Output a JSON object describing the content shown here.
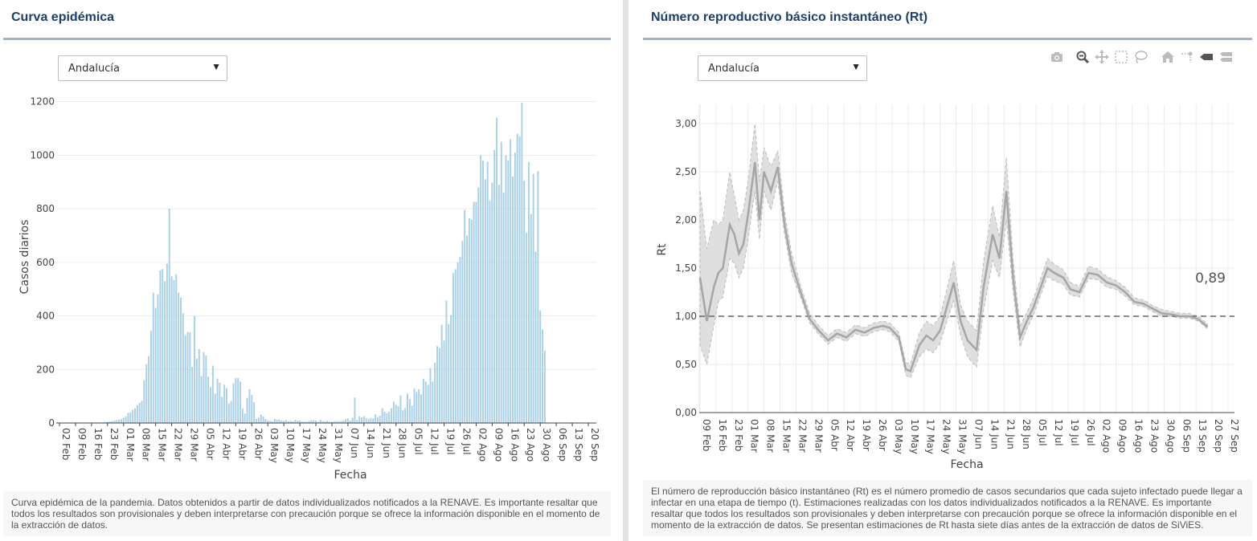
{
  "left_panel": {
    "title": "Curva epidémica",
    "region_select": {
      "value": "Andalucía"
    },
    "footnote": "Curva epidémica de la pandemia. Datos obtenidos a partir de datos individualizados notificados a la RENAVE. Es importante resaltar que todos los resultados son provisionales y deben interpretarse con precaución porque se ofrece la información disponible en el momento de la extracción de datos."
  },
  "right_panel": {
    "title": "Número reproductivo básico instantáneo (Rt)",
    "region_select": {
      "value": "Andalucía"
    },
    "footnote": "El número de reproducción básico instantáneo (Rt) es el número promedio de casos secundarios que cada sujeto infectado puede llegar a infectar en una etapa de tiempo (t). Estimaciones realizadas con los datos individualizados notificados a la RENAVE. Es importante resaltar que todos los resultados son provisionales y deben interpretarse con precaución porque se ofrece la información disponible en el momento de la extracción de datos. Se presentan estimaciones de Rt hasta siete días antes de la extracción de datos de SiViES.",
    "modebar": [
      "camera-icon",
      "zoom-icon",
      "pan-icon",
      "box-select-icon",
      "lasso-select-icon",
      "home-icon",
      "spike-lines-icon",
      "hover-closest-icon",
      "hover-compare-icon"
    ]
  },
  "colors": {
    "bars": "#a9d0e6",
    "rt_line": "#a6a6a6",
    "rt_band": "#d9d9d9",
    "title": "#1b3f6a",
    "rule": "#9db4cd"
  },
  "chart_data": [
    {
      "type": "bar",
      "xlabel": "Fecha",
      "ylabel": "Casos diarios",
      "ylim": [
        0,
        1220
      ],
      "yticks": [
        "0",
        "200",
        "400",
        "600",
        "800",
        "1000",
        "1200"
      ],
      "ytick_values": [
        0,
        200,
        400,
        600,
        800,
        1000,
        1200
      ],
      "xticks": [
        "02 Feb",
        "09 Feb",
        "16 Feb",
        "23 Feb",
        "01 Mar",
        "08 Mar",
        "15 Mar",
        "22 Mar",
        "29 Mar",
        "05 Abr",
        "12 Abr",
        "19 Abr",
        "26 Abr",
        "03 May",
        "10 May",
        "17 May",
        "24 May",
        "31 May",
        "07 Jun",
        "14 Jun",
        "21 Jun",
        "28 Jun",
        "05 Jul",
        "12 Jul",
        "19 Jul",
        "26 Jul",
        "02 Ago",
        "09 Ago",
        "16 Ago",
        "23 Ago",
        "30 Ago",
        "06 Sep",
        "13 Sep",
        "20 Sep"
      ],
      "start_date": "2020-02-02",
      "values": [
        0,
        0,
        0,
        1,
        1,
        0,
        0,
        0,
        1,
        1,
        0,
        0,
        0,
        1,
        1,
        2,
        2,
        2,
        2,
        3,
        4,
        5,
        6,
        7,
        9,
        11,
        12,
        15,
        19,
        24,
        38,
        40,
        49,
        54,
        67,
        75,
        83,
        160,
        220,
        250,
        344,
        487,
        430,
        480,
        570,
        575,
        530,
        595,
        800,
        548,
        534,
        556,
        486,
        468,
        410,
        326,
        340,
        338,
        210,
        400,
        240,
        276,
        175,
        264,
        252,
        173,
        134,
        214,
        110,
        166,
        150,
        97,
        143,
        130,
        73,
        82,
        148,
        168,
        168,
        155,
        54,
        35,
        94,
        126,
        105,
        78,
        15,
        20,
        32,
        24,
        15,
        10,
        8,
        6,
        16,
        12,
        13,
        9,
        8,
        11,
        7,
        8,
        6,
        12,
        9,
        9,
        6,
        5,
        5,
        7,
        10,
        10,
        9,
        5,
        12,
        7,
        6,
        9,
        5,
        5,
        5,
        7,
        7,
        7,
        9,
        14,
        17,
        9,
        20,
        95,
        12,
        25,
        21,
        25,
        19,
        15,
        19,
        17,
        32,
        22,
        27,
        55,
        42,
        37,
        42,
        55,
        80,
        68,
        63,
        103,
        48,
        56,
        110,
        90,
        65,
        128,
        116,
        126,
        107,
        165,
        155,
        143,
        205,
        155,
        225,
        287,
        280,
        367,
        308,
        457,
        370,
        403,
        560,
        574,
        600,
        620,
        680,
        796,
        700,
        765,
        760,
        826,
        826,
        880,
        1000,
        980,
        910,
        976,
        830,
        898,
        1020,
        1140,
        890,
        1050,
        860,
        1000,
        980,
        1060,
        920,
        1010,
        1080,
        1070,
        1196,
        905,
        710,
        975,
        780,
        930,
        640,
        940,
        420,
        350,
        270
      ]
    },
    {
      "type": "line",
      "xlabel": "Fecha",
      "ylabel": "Rt",
      "ylim": [
        0,
        3.2
      ],
      "yticks": [
        "0,00",
        "0,50",
        "1,00",
        "1,50",
        "2,00",
        "2,50",
        "3,00"
      ],
      "ytick_values": [
        0,
        0.5,
        1,
        1.5,
        2,
        2.5,
        3
      ],
      "xticks": [
        "09 Feb",
        "16 Feb",
        "23 Feb",
        "01 Mar",
        "08 Mar",
        "15 Mar",
        "22 Mar",
        "29 Mar",
        "05 Abr",
        "12 Abr",
        "19 Abr",
        "26 Abr",
        "03 May",
        "10 May",
        "17 May",
        "24 May",
        "31 May",
        "07 Jun",
        "14 Jun",
        "21 Jun",
        "28 Jun",
        "05 Jul",
        "12 Jul",
        "19 Jul",
        "26 Jul",
        "02 Ago",
        "09 Ago",
        "16 Ago",
        "23 Ago",
        "30 Ago",
        "06 Sep",
        "13 Sep",
        "20 Sep",
        "27 Sep"
      ],
      "reference_line": 1.0,
      "last_value_label": "0,89",
      "series": [
        {
          "x": [
            "2020-02-09",
            "2020-02-12",
            "2020-02-15",
            "2020-02-17",
            "2020-02-19",
            "2020-02-22",
            "2020-02-24",
            "2020-02-26",
            "2020-02-28",
            "2020-03-01",
            "2020-03-04",
            "2020-03-06",
            "2020-03-08",
            "2020-03-11",
            "2020-03-14",
            "2020-03-17",
            "2020-03-20",
            "2020-03-24",
            "2020-03-28",
            "2020-04-01",
            "2020-04-05",
            "2020-04-09",
            "2020-04-13",
            "2020-04-17",
            "2020-04-21",
            "2020-04-25",
            "2020-04-29",
            "2020-05-02",
            "2020-05-06",
            "2020-05-09",
            "2020-05-11",
            "2020-05-15",
            "2020-05-18",
            "2020-05-21",
            "2020-05-24",
            "2020-05-27",
            "2020-05-30",
            "2020-06-02",
            "2020-06-05",
            "2020-06-09",
            "2020-06-12",
            "2020-06-16",
            "2020-06-19",
            "2020-06-22",
            "2020-06-25",
            "2020-06-28",
            "2020-07-01",
            "2020-07-04",
            "2020-07-07",
            "2020-07-10",
            "2020-07-13",
            "2020-07-17",
            "2020-07-20",
            "2020-07-24",
            "2020-07-28",
            "2020-08-01",
            "2020-08-05",
            "2020-08-09",
            "2020-08-13",
            "2020-08-17",
            "2020-08-21",
            "2020-08-25",
            "2020-08-29",
            "2020-09-02",
            "2020-09-06",
            "2020-09-10",
            "2020-09-14",
            "2020-09-18"
          ],
          "y": [
            1.4,
            0.95,
            1.3,
            1.45,
            1.5,
            1.95,
            1.85,
            1.65,
            1.75,
            2.05,
            2.6,
            2.0,
            2.5,
            2.3,
            2.55,
            1.95,
            1.55,
            1.25,
            0.97,
            0.85,
            0.75,
            0.82,
            0.78,
            0.86,
            0.83,
            0.88,
            0.9,
            0.88,
            0.78,
            0.45,
            0.43,
            0.7,
            0.8,
            0.75,
            0.85,
            1.1,
            1.35,
            0.95,
            0.75,
            0.65,
            1.3,
            1.85,
            1.6,
            2.3,
            1.4,
            0.78,
            0.95,
            1.1,
            1.3,
            1.5,
            1.45,
            1.4,
            1.28,
            1.25,
            1.45,
            1.43,
            1.35,
            1.32,
            1.25,
            1.15,
            1.13,
            1.08,
            1.03,
            1.02,
            1.0,
            1.0,
            0.97,
            0.89
          ],
          "lower": [
            0.7,
            0.5,
            0.9,
            1.15,
            1.2,
            1.6,
            1.55,
            1.4,
            1.5,
            1.8,
            2.3,
            1.8,
            2.3,
            2.1,
            2.4,
            1.85,
            1.45,
            1.2,
            0.93,
            0.81,
            0.71,
            0.78,
            0.74,
            0.82,
            0.79,
            0.84,
            0.86,
            0.84,
            0.74,
            0.39,
            0.36,
            0.58,
            0.66,
            0.62,
            0.72,
            0.95,
            1.16,
            0.8,
            0.58,
            0.47,
            1.06,
            1.58,
            1.4,
            2.0,
            1.25,
            0.68,
            0.87,
            1.02,
            1.22,
            1.41,
            1.37,
            1.33,
            1.22,
            1.2,
            1.39,
            1.38,
            1.3,
            1.28,
            1.21,
            1.12,
            1.1,
            1.05,
            1.0,
            1.0,
            0.98,
            0.98,
            0.95,
            0.87
          ],
          "upper": [
            2.3,
            1.7,
            2.0,
            1.95,
            2.0,
            2.5,
            2.25,
            2.0,
            2.1,
            2.4,
            3.0,
            2.4,
            2.75,
            2.55,
            2.72,
            2.08,
            1.66,
            1.32,
            1.03,
            0.9,
            0.8,
            0.87,
            0.83,
            0.91,
            0.88,
            0.93,
            0.95,
            0.93,
            0.83,
            0.52,
            0.5,
            0.83,
            0.95,
            0.9,
            1.0,
            1.28,
            1.58,
            1.12,
            0.95,
            0.85,
            1.56,
            2.15,
            1.82,
            2.65,
            1.58,
            0.9,
            1.04,
            1.19,
            1.39,
            1.6,
            1.54,
            1.48,
            1.35,
            1.31,
            1.52,
            1.49,
            1.41,
            1.37,
            1.3,
            1.19,
            1.17,
            1.11,
            1.07,
            1.05,
            1.03,
            1.03,
            1.0,
            0.92
          ]
        }
      ]
    }
  ]
}
